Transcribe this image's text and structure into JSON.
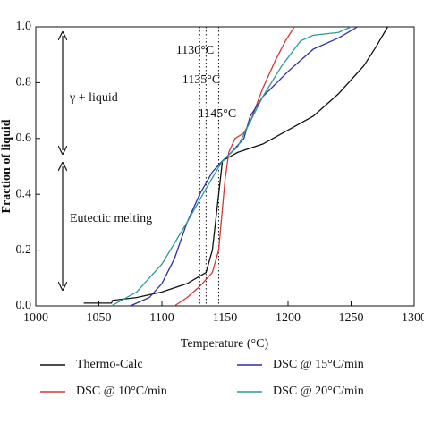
{
  "chart_data": {
    "type": "line",
    "x_label": "Temperature (°C)",
    "y_label": "Fraction of liquid",
    "xlim": [
      1000,
      1300
    ],
    "ylim": [
      0,
      1
    ],
    "xticks": [
      1000,
      1050,
      1100,
      1150,
      1200,
      1250,
      1300
    ],
    "yticks": [
      {
        "value": 0,
        "label": "0.0"
      },
      0.2,
      0.4,
      0.6,
      0.8,
      {
        "value": 1,
        "label": "1.0"
      }
    ],
    "series": [
      {
        "name": "Thermo-Calc",
        "color": "#111111",
        "x": [
          1038,
          1060,
          1061,
          1080,
          1100,
          1120,
          1135,
          1140,
          1145,
          1148,
          1160,
          1180,
          1200,
          1220,
          1240,
          1260,
          1270,
          1279
        ],
        "values": [
          0.01,
          0.01,
          0.02,
          0.03,
          0.05,
          0.08,
          0.12,
          0.2,
          0.4,
          0.52,
          0.55,
          0.58,
          0.63,
          0.68,
          0.76,
          0.86,
          0.93,
          1.0
        ]
      },
      {
        "name": "DSC @ 10°C/min",
        "color": "#d03a35",
        "x": [
          1110,
          1120,
          1130,
          1140,
          1145,
          1150,
          1153,
          1158,
          1165,
          1170,
          1180,
          1190,
          1198,
          1205
        ],
        "values": [
          0.0,
          0.03,
          0.07,
          0.12,
          0.2,
          0.45,
          0.55,
          0.6,
          0.62,
          0.66,
          0.78,
          0.88,
          0.95,
          1.0
        ]
      },
      {
        "name": "DSC @ 15°C/min",
        "color": "#2e2ea8",
        "x": [
          1075,
          1090,
          1100,
          1110,
          1120,
          1130,
          1140,
          1148,
          1155,
          1165,
          1170,
          1180,
          1200,
          1220,
          1240,
          1255
        ],
        "values": [
          0.0,
          0.03,
          0.08,
          0.17,
          0.3,
          0.4,
          0.48,
          0.52,
          0.55,
          0.6,
          0.68,
          0.75,
          0.84,
          0.92,
          0.96,
          1.0
        ]
      },
      {
        "name": "DSC @ 20°C/min",
        "color": "#2a9a9a",
        "x": [
          1060,
          1080,
          1100,
          1120,
          1135,
          1148,
          1160,
          1170,
          1180,
          1195,
          1210,
          1220,
          1240,
          1250
        ],
        "values": [
          0.0,
          0.05,
          0.15,
          0.3,
          0.42,
          0.52,
          0.57,
          0.66,
          0.75,
          0.86,
          0.95,
          0.97,
          0.98,
          1.0
        ]
      }
    ],
    "vlines": [
      {
        "value": 1130,
        "label": "1130°C"
      },
      {
        "value": 1135,
        "label": "1135°C"
      },
      {
        "value": 1145,
        "label": "1145°C"
      }
    ],
    "annotations": [
      "γ + liquid",
      "Eutectic melting"
    ]
  }
}
